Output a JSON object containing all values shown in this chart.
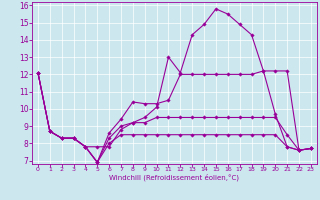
{
  "xlabel": "Windchill (Refroidissement éolien,°C)",
  "background_color": "#cce8ee",
  "line_color": "#990099",
  "grid_color": "#ffffff",
  "xlim": [
    -0.5,
    23.5
  ],
  "ylim": [
    6.8,
    16.2
  ],
  "xticks": [
    0,
    1,
    2,
    3,
    4,
    5,
    6,
    7,
    8,
    9,
    10,
    11,
    12,
    13,
    14,
    15,
    16,
    17,
    18,
    19,
    20,
    21,
    22,
    23
  ],
  "yticks": [
    7,
    8,
    9,
    10,
    11,
    12,
    13,
    14,
    15,
    16
  ],
  "series": [
    [
      12.1,
      8.7,
      8.3,
      8.3,
      7.8,
      7.8,
      7.8,
      8.8,
      9.2,
      9.5,
      10.1,
      13.0,
      12.1,
      14.3,
      14.9,
      15.8,
      15.5,
      14.9,
      14.3,
      12.2,
      9.7,
      7.8,
      7.6,
      7.7
    ],
    [
      12.1,
      8.7,
      8.3,
      8.3,
      7.8,
      6.9,
      8.6,
      9.4,
      10.4,
      10.3,
      10.3,
      10.5,
      12.0,
      12.0,
      12.0,
      12.0,
      12.0,
      12.0,
      12.0,
      12.2,
      12.2,
      12.2,
      7.6,
      7.7
    ],
    [
      12.1,
      8.7,
      8.3,
      8.3,
      7.8,
      6.9,
      8.3,
      9.0,
      9.2,
      9.2,
      9.5,
      9.5,
      9.5,
      9.5,
      9.5,
      9.5,
      9.5,
      9.5,
      9.5,
      9.5,
      9.5,
      8.5,
      7.6,
      7.7
    ],
    [
      12.1,
      8.7,
      8.3,
      8.3,
      7.8,
      6.9,
      8.0,
      8.5,
      8.5,
      8.5,
      8.5,
      8.5,
      8.5,
      8.5,
      8.5,
      8.5,
      8.5,
      8.5,
      8.5,
      8.5,
      8.5,
      7.8,
      7.6,
      7.7
    ]
  ]
}
